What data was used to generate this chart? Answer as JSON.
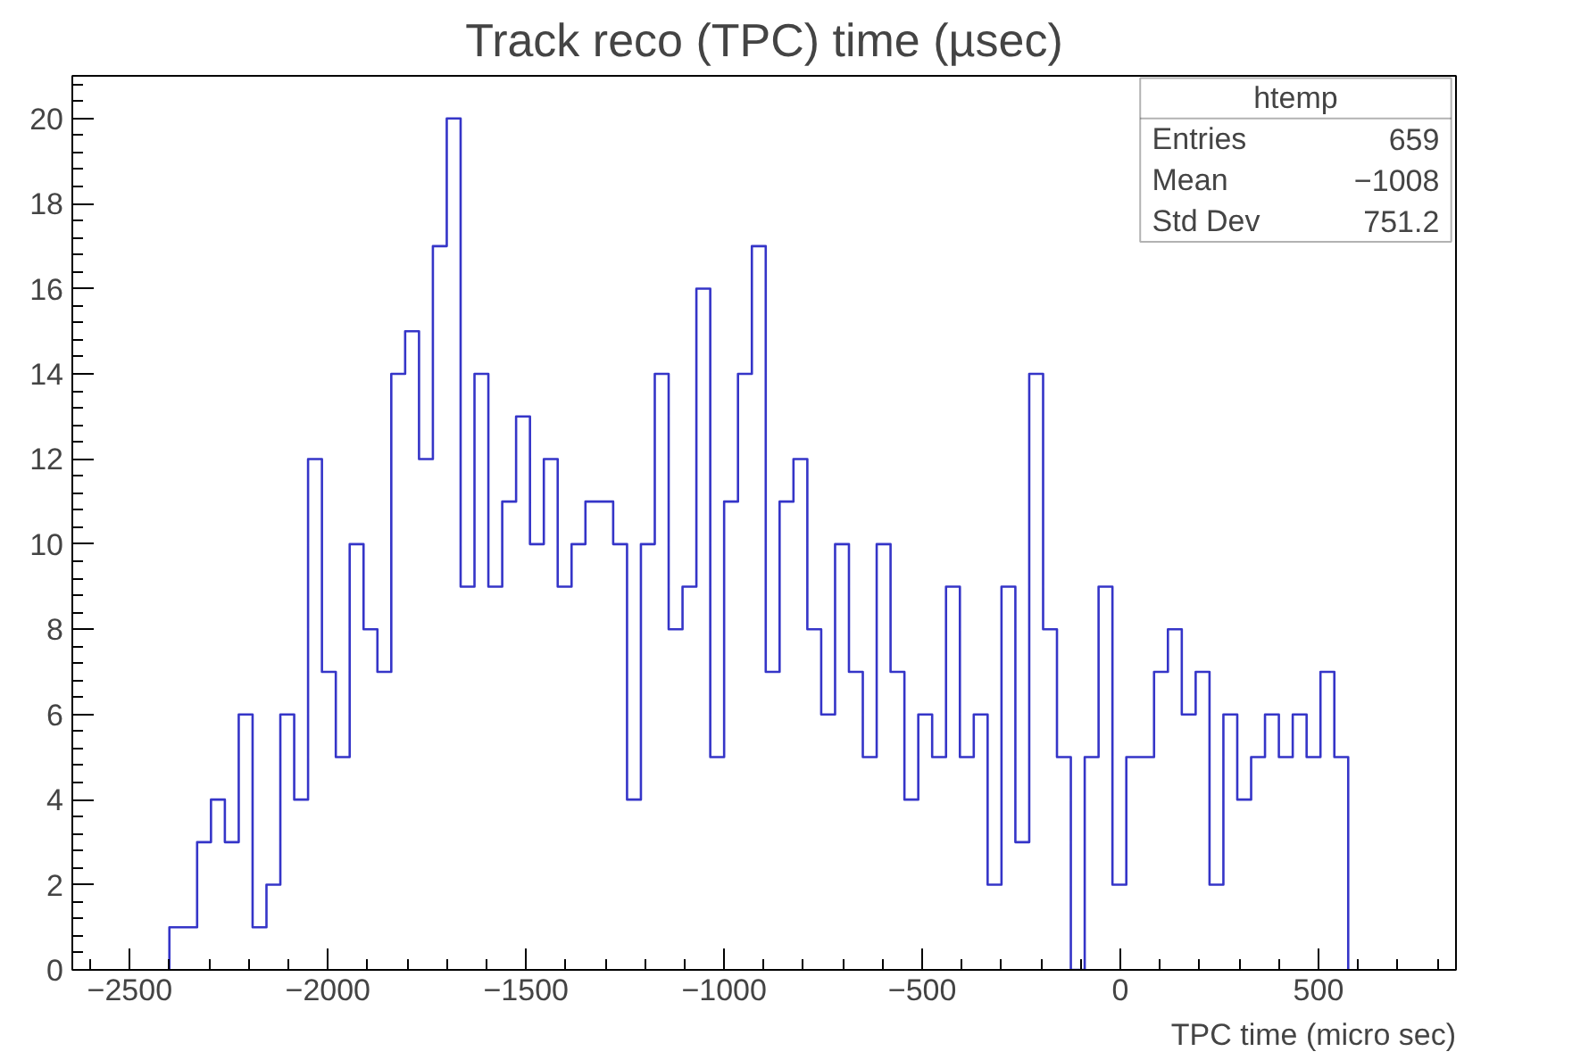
{
  "chart_data": {
    "type": "histogram",
    "title": "Track reco (TPC) time (µsec)",
    "xlabel": "TPC time (micro sec)",
    "bins": [
      -2400,
      -2365,
      -2330,
      -2295,
      -2260,
      -2225,
      -2190,
      -2155,
      -2120,
      -2085,
      -2050,
      -2015,
      -1980,
      -1945,
      -1910,
      -1875,
      -1840,
      -1805,
      -1770,
      -1735,
      -1700,
      -1665,
      -1630,
      -1595,
      -1560,
      -1525,
      -1490,
      -1455,
      -1420,
      -1385,
      -1350,
      -1315,
      -1280,
      -1245,
      -1210,
      -1175,
      -1140,
      -1105,
      -1070,
      -1035,
      -1000,
      -965,
      -930,
      -895,
      -860,
      -825,
      -790,
      -755,
      -720,
      -685,
      -650,
      -615,
      -580,
      -545,
      -510,
      -475,
      -440,
      -405,
      -370,
      -335,
      -300,
      -265,
      -230,
      -195,
      -160,
      -125,
      -90,
      -55,
      -20,
      15,
      50,
      85,
      120,
      155,
      190,
      225,
      260,
      295,
      330,
      365,
      400,
      435,
      470,
      505,
      540,
      575
    ],
    "values": [
      1,
      1,
      3,
      4,
      3,
      6,
      1,
      2,
      6,
      4,
      12,
      7,
      5,
      10,
      8,
      7,
      14,
      15,
      12,
      17,
      20,
      9,
      14,
      9,
      11,
      13,
      10,
      12,
      9,
      10,
      11,
      11,
      10,
      4,
      10,
      14,
      8,
      9,
      16,
      5,
      11,
      14,
      17,
      7,
      11,
      12,
      8,
      6,
      10,
      7,
      5,
      10,
      7,
      4,
      6,
      5,
      9,
      5,
      6,
      2,
      9,
      3,
      14,
      8,
      5,
      0,
      5,
      9,
      2,
      5,
      5,
      7,
      8,
      6,
      7,
      2,
      6,
      4,
      5,
      6,
      5,
      6,
      5,
      7,
      5
    ],
    "color": "#3535c8",
    "xlim": [
      -2645,
      847
    ],
    "ylim": [
      0,
      21
    ],
    "xticks": [
      {
        "value": -2500,
        "label": "−2500"
      },
      {
        "value": -2000,
        "label": "−2000"
      },
      {
        "value": -1500,
        "label": "−1500"
      },
      {
        "value": -1000,
        "label": "−1000"
      },
      {
        "value": -500,
        "label": "−500"
      },
      0,
      500
    ],
    "yticks": [
      0,
      2,
      4,
      6,
      8,
      10,
      12,
      14,
      16,
      18,
      20
    ],
    "grid": false,
    "annotations": [
      "htemp",
      "Entries",
      "659",
      "Mean",
      "−1008",
      "Std Dev",
      "751.2"
    ]
  }
}
